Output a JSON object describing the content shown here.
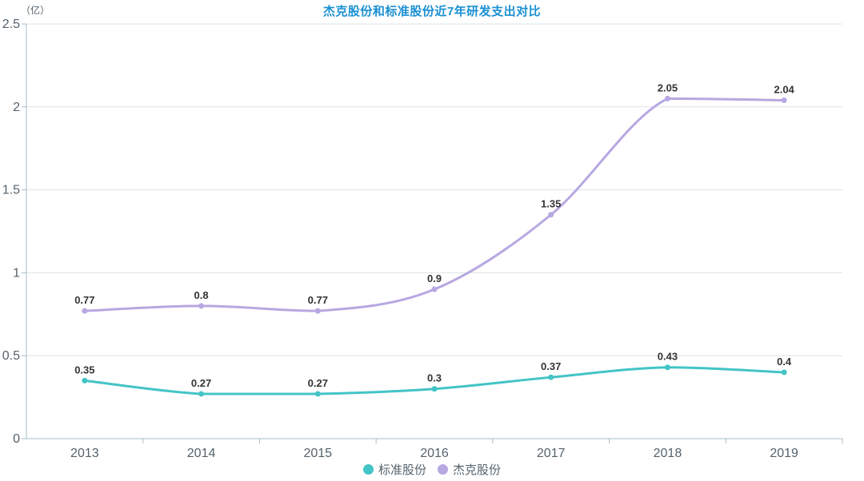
{
  "page": {
    "background": "#ffffff"
  },
  "header": {
    "title": "杰克股份和标准股份近7年研发支出对比",
    "title_color": "#1a90d3"
  },
  "chart_data": {
    "type": "line",
    "title": "杰克股份和标准股份近7年研发支出对比",
    "unit_label": "（亿）",
    "categories": [
      "2013",
      "2014",
      "2015",
      "2016",
      "2017",
      "2018",
      "2019"
    ],
    "series": [
      {
        "name": "标准股份",
        "color": "#43c4c6",
        "values": [
          0.35,
          0.27,
          0.27,
          0.3,
          0.37,
          0.43,
          0.4
        ]
      },
      {
        "name": "杰克股份",
        "color": "#b7a8e2",
        "values": [
          0.77,
          0.8,
          0.77,
          0.9,
          1.35,
          2.05,
          2.04
        ]
      }
    ],
    "ylim": [
      0,
      2.5
    ],
    "ytick_step": 0.5,
    "yticks": [
      "0",
      "0.5",
      "1",
      "1.5",
      "2",
      "2.5"
    ],
    "grid": true,
    "smooth": true,
    "show_point_labels": true,
    "legend_position": "bottom",
    "label_color": "#333333",
    "axis_color": "#a4bcc9",
    "grid_color": "#dbe5e7",
    "tick_label_color": "#55626c"
  }
}
